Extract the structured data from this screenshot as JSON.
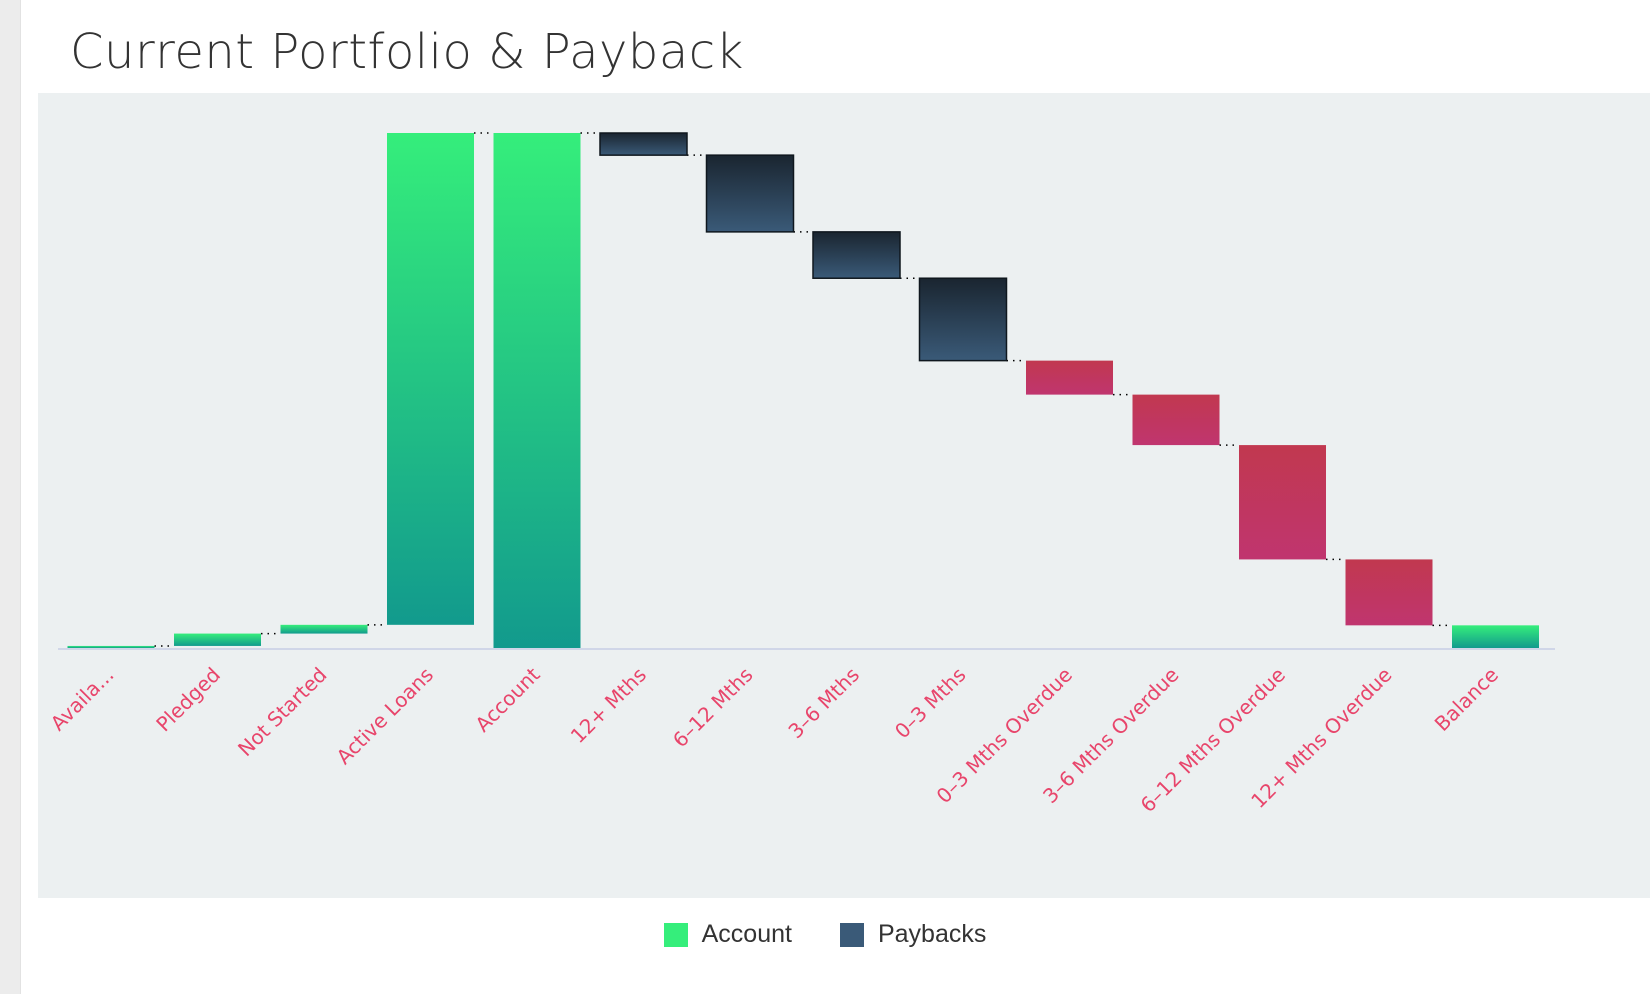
{
  "chart_data": {
    "type": "bar",
    "subtype": "waterfall",
    "title": "Current Portfolio & Payback",
    "categories": [
      "Availa...",
      "Pledged",
      "Not Started",
      "Active Loans",
      "Account",
      "12+ Mths",
      "6–12 Mths",
      "3–6 Mths",
      "0–3 Mths",
      "0–3 Mths Overdue",
      "3–6 Mths Overdue",
      "6–12 Mths Overdue",
      "12+ Mths Overdue",
      "Balance"
    ],
    "bars": [
      {
        "category": "Availa...",
        "kind": "account",
        "start": 0,
        "end": 0.4
      },
      {
        "category": "Pledged",
        "kind": "account",
        "start": 0.4,
        "end": 2.8
      },
      {
        "category": "Not Started",
        "kind": "account",
        "start": 2.8,
        "end": 4.5
      },
      {
        "category": "Active Loans",
        "kind": "account",
        "start": 4.5,
        "end": 100
      },
      {
        "category": "Account",
        "kind": "account",
        "start": 0,
        "end": 100
      },
      {
        "category": "12+ Mths",
        "kind": "payback",
        "start": 100,
        "end": 95.7
      },
      {
        "category": "6–12 Mths",
        "kind": "payback",
        "start": 95.7,
        "end": 80.8
      },
      {
        "category": "3–6 Mths",
        "kind": "payback",
        "start": 80.8,
        "end": 71.8
      },
      {
        "category": "0–3 Mths",
        "kind": "payback",
        "start": 71.8,
        "end": 55.8
      },
      {
        "category": "0–3 Mths Overdue",
        "kind": "overdue",
        "start": 55.8,
        "end": 49.2
      },
      {
        "category": "3–6 Mths Overdue",
        "kind": "overdue",
        "start": 49.2,
        "end": 39.4
      },
      {
        "category": "6–12 Mths Overdue",
        "kind": "overdue",
        "start": 39.4,
        "end": 17.2
      },
      {
        "category": "12+ Mths Overdue",
        "kind": "overdue",
        "start": 17.2,
        "end": 4.4
      },
      {
        "category": "Balance",
        "kind": "account",
        "start": 0,
        "end": 4.4
      }
    ],
    "ylim": [
      0,
      100
    ],
    "xlabel": "",
    "ylabel": "",
    "grid": false,
    "legend": {
      "position": "bottom-center",
      "entries": [
        {
          "name": "Account",
          "color": "#35ee7b"
        },
        {
          "name": "Paybacks",
          "color": "#3a5a78"
        }
      ]
    },
    "colors": {
      "account_top": "#35ee7b",
      "account_bottom": "#129a8d",
      "payback_top": "#1a2530",
      "payback_bottom": "#3a5a78",
      "overdue_top": "#c1384f",
      "overdue_bottom": "#c0356f",
      "tick_label": "#e8456b",
      "axis_line": "#c7cde6",
      "connector": "#000000"
    }
  }
}
